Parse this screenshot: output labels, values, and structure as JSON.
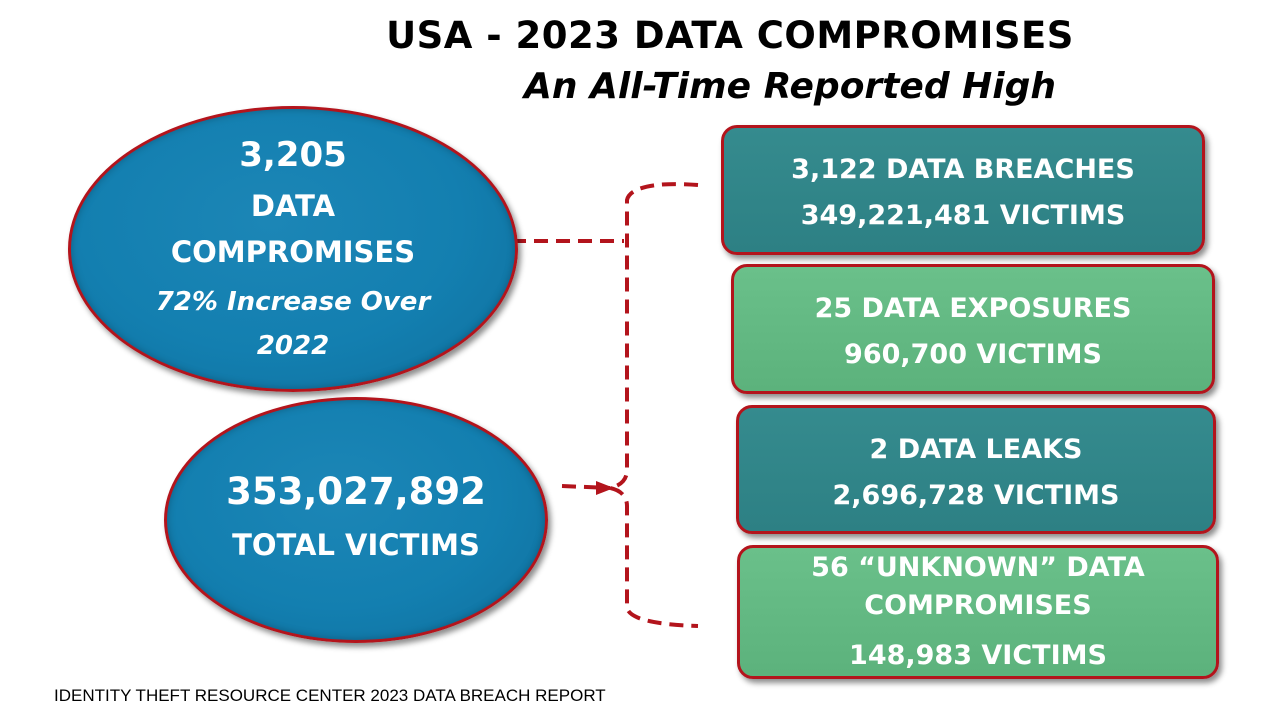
{
  "title": "USA - 2023 DATA COMPROMISES",
  "subtitle": "An All-Time Reported High",
  "compromises": {
    "count": "3,205",
    "line1": "DATA",
    "line2": "COMPROMISES",
    "increase_line1": "72% Increase Over",
    "increase_line2": "2022"
  },
  "victims": {
    "count": "353,027,892",
    "label": "TOTAL VICTIMS"
  },
  "categories": [
    {
      "line1": "3,122 DATA BREACHES",
      "victims": "349,221,481 VICTIMS",
      "color": "#2f8386"
    },
    {
      "line1": "25 DATA EXPOSURES",
      "victims": "960,700 VICTIMS",
      "color": "#64b985"
    },
    {
      "line1": "2 DATA LEAKS",
      "victims": "2,696,728 VICTIMS",
      "color": "#2f8386"
    },
    {
      "line1": "56 “UNKNOWN” DATA",
      "line2": "COMPROMISES",
      "victims": "148,983 VICTIMS",
      "color": "#64b985"
    }
  ],
  "connector_color": "#b3141c",
  "footer": "IDENTITY THEFT RESOURCE CENTER 2023 DATA BREACH REPORT"
}
